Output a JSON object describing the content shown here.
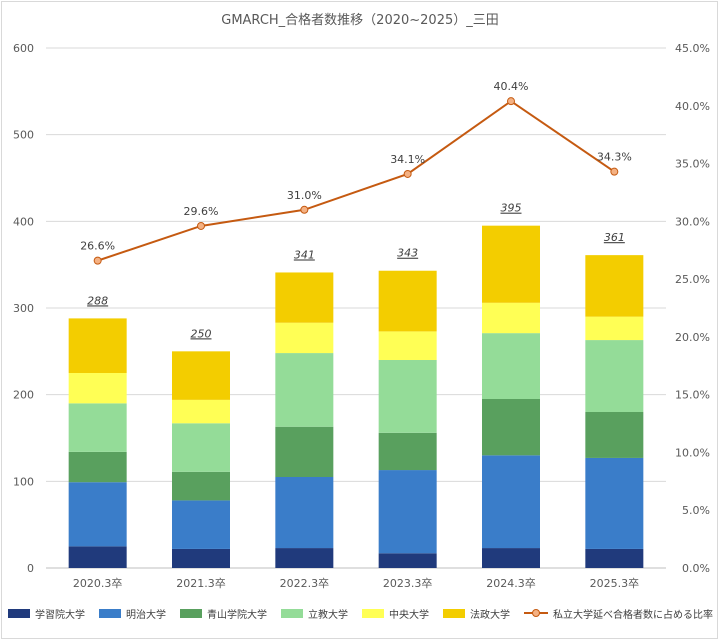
{
  "chart_data": {
    "type": "bar",
    "title": "GMARCH_合格者数推移（2020~2025）_三田",
    "categories": [
      "2020.3卒",
      "2021.3卒",
      "2022.3卒",
      "2023.3卒",
      "2024.3卒",
      "2025.3卒"
    ],
    "series": [
      {
        "name": "学習院大学",
        "color": "#203a7c",
        "values": [
          25,
          22,
          23,
          17,
          23,
          22
        ]
      },
      {
        "name": "明治大学",
        "color": "#3a7dc9",
        "values": [
          74,
          56,
          82,
          96,
          107,
          105
        ]
      },
      {
        "name": "青山学院大学",
        "color": "#59a05e",
        "values": [
          35,
          33,
          58,
          43,
          65,
          53
        ]
      },
      {
        "name": "立教大学",
        "color": "#94dc98",
        "values": [
          56,
          56,
          85,
          84,
          76,
          83
        ]
      },
      {
        "name": "中央大学",
        "color": "#ffff55",
        "values": [
          35,
          27,
          35,
          33,
          35,
          27
        ]
      },
      {
        "name": "法政大学",
        "color": "#f3cd00",
        "values": [
          63,
          56,
          58,
          70,
          89,
          71
        ]
      }
    ],
    "totals": [
      288,
      250,
      341,
      343,
      395,
      361
    ],
    "line_series": {
      "name": "私立大学延べ合格者数に占める比率",
      "color": "#c55a11",
      "marker_color": "#f4b183",
      "values": [
        26.6,
        29.6,
        31.0,
        34.1,
        40.4,
        34.3
      ],
      "labels": [
        "26.6%",
        "29.6%",
        "31.0%",
        "34.1%",
        "40.4%",
        "34.3%"
      ]
    },
    "y_left": {
      "min": 0,
      "max": 600,
      "step": 100,
      "ticks": [
        "0",
        "100",
        "200",
        "300",
        "400",
        "500",
        "600"
      ]
    },
    "y_right": {
      "min": 0,
      "max": 45,
      "step": 5,
      "ticks": [
        "0.0%",
        "5.0%",
        "10.0%",
        "15.0%",
        "20.0%",
        "25.0%",
        "30.0%",
        "35.0%",
        "40.0%",
        "45.0%"
      ]
    },
    "grid": true,
    "legend_position": "bottom"
  }
}
